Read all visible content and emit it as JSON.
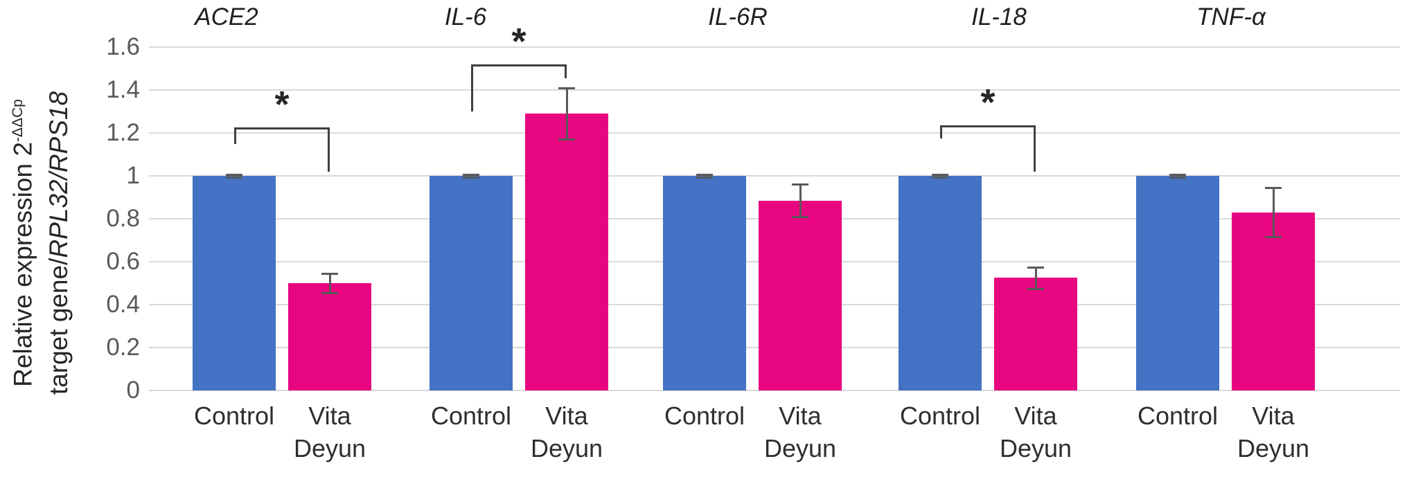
{
  "chart_data": {
    "type": "bar",
    "title": "",
    "categories": [
      "ACE2",
      "IL-6",
      "IL-6R",
      "IL-18",
      "TNF-α"
    ],
    "series": [
      {
        "name": "Control",
        "color": "#4472C4",
        "values": [
          1.0,
          1.0,
          1.0,
          1.0,
          1.0
        ],
        "errors": [
          0.008,
          0.008,
          0.008,
          0.008,
          0.008
        ]
      },
      {
        "name": "Vita Deyun",
        "color": "#E80580",
        "values": [
          0.5,
          1.29,
          0.885,
          0.525,
          0.83
        ],
        "errors": [
          0.045,
          0.12,
          0.075,
          0.05,
          0.115
        ]
      }
    ],
    "x_group_labels": {
      "control": "Control",
      "treatment_line1": "Vita",
      "treatment_line2": "Deyun"
    },
    "y_ticks": [
      "0",
      "0.2",
      "0.4",
      "0.6",
      "0.8",
      "1",
      "1.2",
      "1.4",
      "1.6"
    ],
    "ylim": [
      0,
      1.6
    ],
    "grid": true,
    "legend": "none",
    "ylabel": {
      "line1": "Relative expression 2",
      "line1_sup": "-ΔΔCp",
      "line2_plain": "target gene/",
      "line2_italic": "RPL32/RPS18"
    },
    "significance": [
      {
        "category": "ACE2",
        "label": "*",
        "bracket_y": 1.225,
        "left_arm_bottom": 1.15,
        "right_arm_bottom": 1.02
      },
      {
        "category": "IL-6",
        "label": "*",
        "bracket_y": 1.52,
        "left_arm_bottom": 1.3,
        "right_arm_bottom": 1.455
      },
      {
        "category": "IL-18",
        "label": "*",
        "bracket_y": 1.235,
        "left_arm_bottom": 1.175,
        "right_arm_bottom": 1.02
      }
    ],
    "colors": {
      "gridline": "#D9D9D9",
      "error_bar": "#595959",
      "bracket": "#3F3F3F",
      "tick_text": "#595959",
      "category_text": "#2E2E2E",
      "title_text": "#1F1F1F",
      "background": "#FFFFFF"
    }
  }
}
